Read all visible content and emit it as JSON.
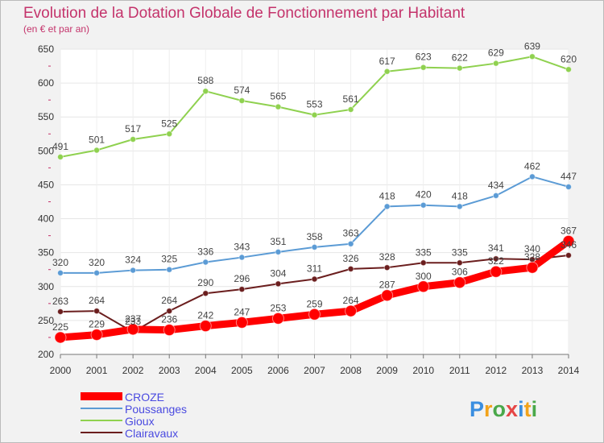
{
  "colors": {
    "title": "#c4336b",
    "croze": "#ff0000",
    "poussanges": "#5b9bd5",
    "gioux": "#8fd14f",
    "clairavaux": "#6b1e1e",
    "legend_text": "#4a4ae0"
  },
  "chart_data": {
    "type": "line",
    "title": "Evolution de la Dotation Globale de Fonctionnement par Habitant",
    "subtitle": "(en € et par an)",
    "xlabel": "",
    "ylabel": "",
    "ylim": [
      200,
      650
    ],
    "yticks": [
      "200",
      "250",
      "300",
      "350",
      "400",
      "450",
      "500",
      "550",
      "600",
      "650"
    ],
    "categories": [
      "2000",
      "2001",
      "2002",
      "2003",
      "2004",
      "2005",
      "2006",
      "2007",
      "2008",
      "2009",
      "2010",
      "2011",
      "2012",
      "2013",
      "2014"
    ],
    "series": [
      {
        "name": "Gioux",
        "values": [
          491,
          501,
          517,
          525,
          588,
          574,
          565,
          553,
          561,
          617,
          623,
          622,
          629,
          639,
          620
        ]
      },
      {
        "name": "Poussanges",
        "values": [
          320,
          320,
          324,
          325,
          336,
          343,
          351,
          358,
          363,
          418,
          420,
          418,
          434,
          462,
          447
        ]
      },
      {
        "name": "Clairavaux",
        "values": [
          263,
          264,
          233,
          264,
          290,
          296,
          304,
          311,
          326,
          328,
          335,
          335,
          341,
          340,
          346
        ]
      },
      {
        "name": "CROZE",
        "values": [
          225,
          229,
          237,
          236,
          242,
          247,
          253,
          259,
          264,
          287,
          300,
          306,
          322,
          328,
          367
        ]
      }
    ]
  },
  "legend": [
    "CROZE",
    "Poussanges",
    "Gioux",
    "Clairavaux"
  ],
  "brand": "Proxiti"
}
